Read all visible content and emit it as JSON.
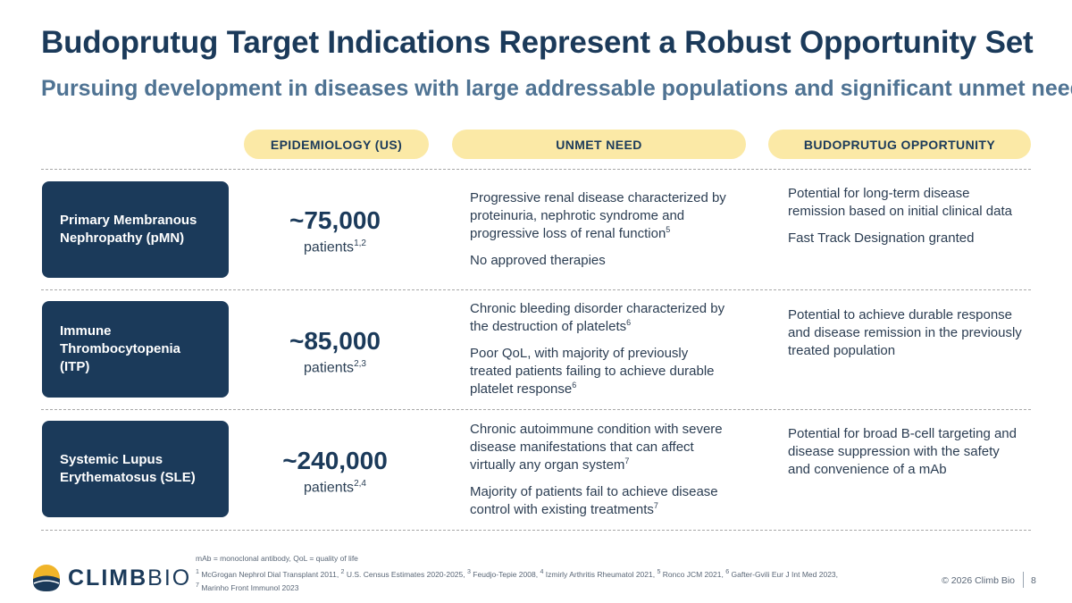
{
  "title": "Budoprutug Target Indications Represent a Robust Opportunity Set",
  "subtitle": "Pursuing development in diseases with large addressable populations and significant unmet need",
  "headers": {
    "epidemiology": "EPIDEMIOLOGY (US)",
    "unmet_need": "UNMET NEED",
    "opportunity": "BUDOPRUTUG OPPORTUNITY"
  },
  "rows": [
    {
      "disease": "Primary Membranous Nephropathy (pMN)",
      "count": "~75,000",
      "patients_label": "patients",
      "patients_refs": "1,2",
      "unmet": [
        {
          "text": "Progressive renal disease characterized by proteinuria, nephrotic syndrome and progressive loss of renal function",
          "ref": "5"
        },
        {
          "text": "No approved therapies",
          "ref": ""
        }
      ],
      "opportunity": [
        "Potential for long-term disease remission based on initial clinical data",
        "Fast Track Designation granted"
      ]
    },
    {
      "disease": "Immune Thrombocytopenia (ITP)",
      "count": "~85,000",
      "patients_label": "patients",
      "patients_refs": "2,3",
      "unmet": [
        {
          "text": "Chronic bleeding disorder characterized by the destruction of platelets",
          "ref": "6"
        },
        {
          "text": "Poor QoL, with majority of previously treated patients failing to achieve durable platelet response",
          "ref": "6"
        }
      ],
      "opportunity": [
        "Potential to achieve durable response and disease remission in the previously treated population"
      ]
    },
    {
      "disease": "Systemic Lupus Erythematosus (SLE)",
      "count": "~240,000",
      "patients_label": "patients",
      "patients_refs": "2,4",
      "unmet": [
        {
          "text": "Chronic autoimmune condition with severe disease manifestations that can affect virtually any organ system",
          "ref": "7"
        },
        {
          "text": "Majority of patients fail to achieve disease control with existing treatments",
          "ref": "7"
        }
      ],
      "opportunity": [
        "Potential for broad B-cell targeting and disease suppression with the safety and convenience of a mAb"
      ]
    }
  ],
  "footnotes": {
    "abbreviations": "mAb = monoclonal antibody,  QoL = quality of life",
    "refs": [
      {
        "n": "1",
        "text": "McGrogan Nephrol Dial Transplant 2011, "
      },
      {
        "n": "2",
        "text": "U.S. Census Estimates 2020-2025, "
      },
      {
        "n": "3",
        "text": "Feudjo-Tepie 2008, "
      },
      {
        "n": "4",
        "text": "Izmirly Arthritis Rheumatol 2021, "
      },
      {
        "n": "5",
        "text": "Ronco JCM 2021, "
      },
      {
        "n": "6",
        "text": "Gafter-Gvili Eur J Int Med 2023,"
      },
      {
        "n": "7",
        "text": "Marinho Front Immunol 2023"
      }
    ]
  },
  "logo": {
    "bold": "CLIMB",
    "light": "BIO",
    "icon": "mountain-sun-logo-icon"
  },
  "copyright": "© 2026 Climb Bio",
  "page_number": "8",
  "colors": {
    "navy": "#1b3a5a",
    "header_yellow": "#fbe9a6",
    "subtitle_blue": "#4f7393",
    "logo_gold": "#f0b429"
  }
}
